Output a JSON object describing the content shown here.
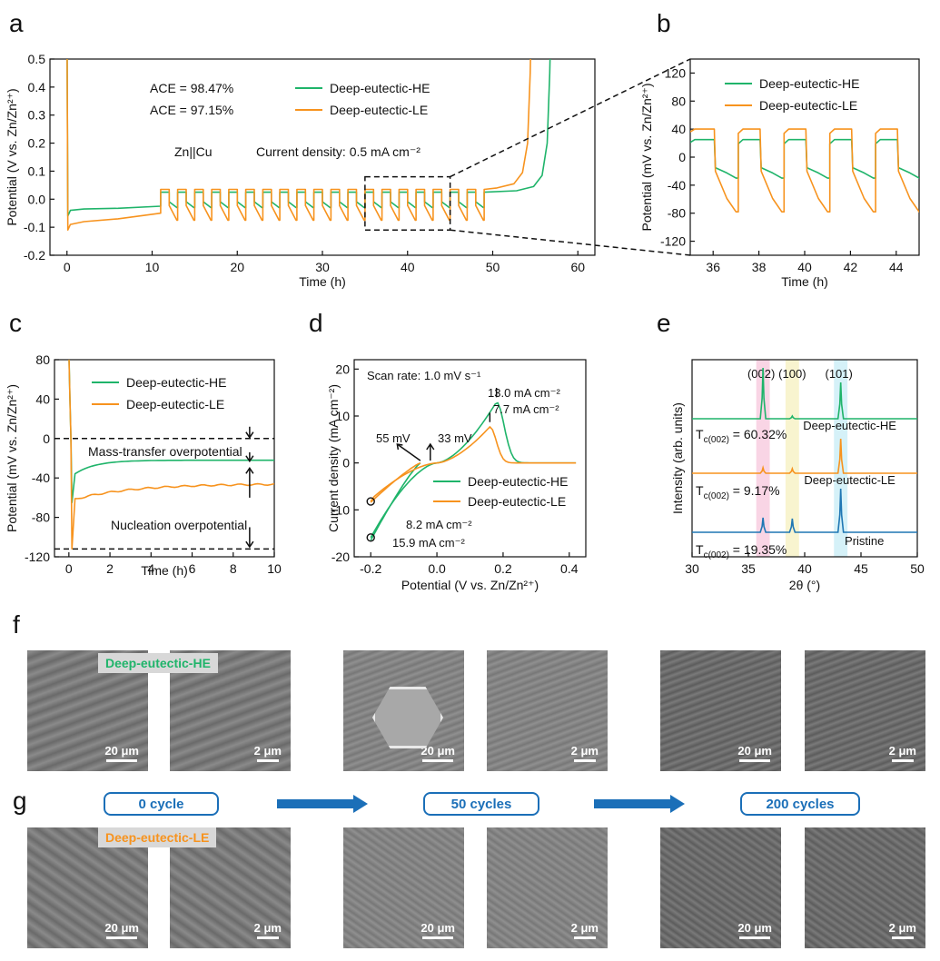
{
  "panel_labels": {
    "a": "a",
    "b": "b",
    "c": "c",
    "d": "d",
    "e": "e",
    "f": "f",
    "g": "g"
  },
  "colors": {
    "he": "#1fb46a",
    "le": "#f7931e",
    "pristine": "#1f77b4",
    "box": "#1b6fb8"
  },
  "chart_data": [
    {
      "id": "a",
      "type": "line",
      "xlabel": "Time (h)",
      "ylabel": "Potential  (V vs. Zn/Zn²⁺)",
      "xlim": [
        -2,
        62
      ],
      "ylim": [
        -0.2,
        0.5
      ],
      "xticks": [
        0,
        10,
        20,
        30,
        40,
        50,
        60
      ],
      "yticks": [
        -0.2,
        -0.1,
        0.0,
        0.1,
        0.2,
        0.3,
        0.4,
        0.5
      ],
      "ytick_labels": [
        "-0.2",
        "-0.1",
        "0.0",
        "0.1",
        "0.2",
        "0.3",
        "0.4",
        "0.5"
      ],
      "legend": [
        "Deep-eutectic-HE",
        "Deep-eutectic-LE"
      ],
      "annotations": {
        "ace_he": "ACE = 98.47%",
        "ace_le": "ACE = 97.15%",
        "cell": "Zn||Cu",
        "current": "Current density:  0.5 mA cm⁻²"
      },
      "series": [
        {
          "name": "Deep-eutectic-HE",
          "nucleation_peak": -0.06,
          "plateau_start": -0.04,
          "plateau_end": -0.025,
          "cycle_high": 0.025,
          "cycle_low": -0.03,
          "cycling_start_h": 11,
          "cycling_end_h": 49,
          "stripping_end_h": 56.8
        },
        {
          "name": "Deep-eutectic-LE",
          "nucleation_peak": -0.11,
          "plateau_start": -0.09,
          "plateau_end": -0.05,
          "cycle_high": 0.035,
          "cycle_low": -0.075,
          "cycling_start_h": 11,
          "cycling_end_h": 49,
          "stripping_end_h": 54.5
        }
      ]
    },
    {
      "id": "b",
      "type": "line",
      "xlabel": "Time (h)",
      "ylabel": "Potential (mV vs. Zn/Zn²⁺)",
      "xlim": [
        35,
        45
      ],
      "ylim": [
        -140,
        140
      ],
      "xticks": [
        36,
        38,
        40,
        42,
        44
      ],
      "yticks": [
        -120,
        -80,
        -40,
        0,
        40,
        80,
        120
      ],
      "legend": [
        "Deep-eutectic-HE",
        "Deep-eutectic-LE"
      ],
      "series": [
        {
          "name": "Deep-eutectic-HE",
          "high": 25,
          "low_start": -15,
          "low_end": -30
        },
        {
          "name": "Deep-eutectic-LE",
          "high": 40,
          "low_start": -20,
          "low_end": -78
        }
      ]
    },
    {
      "id": "c",
      "type": "line",
      "xlabel": "Time (h)",
      "ylabel": "Potential (mV vs. Zn/Zn²⁺)",
      "xlim": [
        -0.7,
        10
      ],
      "ylim": [
        -120,
        80
      ],
      "xticks": [
        0,
        2,
        4,
        6,
        8,
        10
      ],
      "yticks": [
        -120,
        -80,
        -40,
        0,
        40,
        80
      ],
      "legend": [
        "Deep-eutectic-HE",
        "Deep-eutectic-LE"
      ],
      "annotations": {
        "mass": "Mass-transfer overpotential",
        "nucleation": "Nucleation overpotential"
      },
      "series": [
        {
          "name": "Deep-eutectic-HE",
          "nucleation_mV": -65,
          "final_mV": -22
        },
        {
          "name": "Deep-eutectic-LE",
          "nucleation_mV": -112,
          "final_mV": -46
        }
      ]
    },
    {
      "id": "d",
      "type": "line",
      "xlabel": "Potential  (V vs. Zn/Zn²⁺)",
      "ylabel": "Current density  (mA cm⁻²)",
      "xlim": [
        -0.25,
        0.45
      ],
      "ylim": [
        -20,
        22
      ],
      "xticks": [
        -0.2,
        0.0,
        0.2,
        0.4
      ],
      "xtick_labels": [
        "-0.2",
        "0.0",
        "0.2",
        "0.4"
      ],
      "yticks": [
        -20,
        -10,
        0,
        10,
        20
      ],
      "legend": [
        "Deep-eutectic-HE",
        "Deep-eutectic-LE"
      ],
      "annotations": {
        "scan": "Scan rate:  1.0 mV s⁻¹",
        "he_peak": "13.0 mA cm⁻²",
        "le_peak": "7.7 mA cm⁻²",
        "he_min": "15.9 mA cm⁻²",
        "le_min": "8.2 mA cm⁻²",
        "le_onset": "55 mV",
        "he_onset": "33 mV"
      },
      "series": [
        {
          "name": "Deep-eutectic-HE",
          "peak_V": 0.18,
          "peak": 13.0,
          "min": -15.9
        },
        {
          "name": "Deep-eutectic-LE",
          "peak_V": 0.16,
          "peak": 7.7,
          "min": -8.2
        }
      ]
    },
    {
      "id": "e",
      "type": "line",
      "xlabel": "2θ (°)",
      "ylabel": "Intensity (arb. units)",
      "xlim": [
        30,
        50
      ],
      "xticks": [
        30,
        35,
        40,
        45,
        50
      ],
      "peaks": [
        {
          "label": "(002)",
          "two_theta": 36.3
        },
        {
          "label": "(100)",
          "two_theta": 38.9
        },
        {
          "label": "(101)",
          "two_theta": 43.2
        }
      ],
      "series": [
        {
          "name": "Deep-eutectic-HE",
          "texture": "T",
          "texture_sub": "c(002)",
          "texture_value": " = 60.32%"
        },
        {
          "name": "Deep-eutectic-LE",
          "texture": "T",
          "texture_sub": "c(002)",
          "texture_value": " = 9.17%"
        },
        {
          "name": "Pristine",
          "texture": "T",
          "texture_sub": "c(002)",
          "texture_value": " = 19.35%"
        }
      ]
    }
  ],
  "sem": {
    "electrolyte_he": "Deep-eutectic-HE",
    "electrolyte_le": "Deep-eutectic-LE",
    "scale_20": "20 μm",
    "scale_2": "2 μm",
    "cycles": [
      "0 cycle",
      "50 cycles",
      "200 cycles"
    ]
  }
}
